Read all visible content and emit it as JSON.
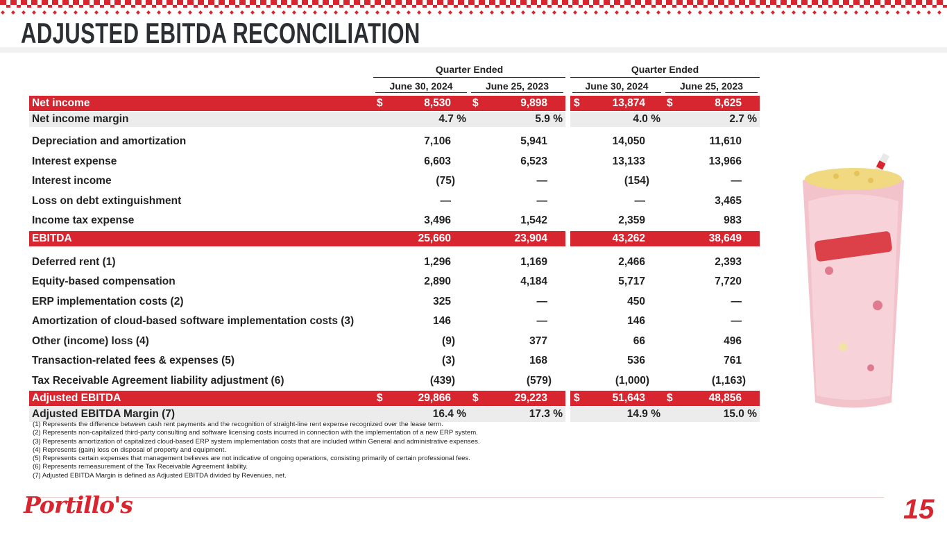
{
  "header": {
    "title": "ADJUSTED EBITDA RECONCILIATION"
  },
  "table": {
    "group_headers": [
      "Quarter Ended",
      "Quarter Ended"
    ],
    "columns": [
      "June 30, 2024",
      "June 25, 2023",
      "June 30, 2024",
      "June 25, 2023"
    ],
    "rows": [
      {
        "label": "Net income",
        "fill": "#d7262f",
        "cells": [
          {
            "symbol": "$",
            "value": "8,530"
          },
          {
            "symbol": "$",
            "value": "9,898"
          },
          {
            "symbol": "$",
            "value": "13,874"
          },
          {
            "symbol": "$",
            "value": "8,625"
          }
        ]
      },
      {
        "label": "Net income margin",
        "fill": "#ececec",
        "cells": [
          "4.7 %",
          "5.9 %",
          "4.0 %",
          "2.7 %"
        ]
      },
      {
        "label": "Depreciation and amortization",
        "cells": [
          "7,106",
          "5,941",
          "14,050",
          "11,610"
        ]
      },
      {
        "label": "Interest expense",
        "cells": [
          "6,603",
          "6,523",
          "13,133",
          "13,966"
        ]
      },
      {
        "label": "Interest income",
        "cells": [
          "(75)",
          "—",
          "(154)",
          "—"
        ]
      },
      {
        "label": "Loss on debt extinguishment",
        "cells": [
          "—",
          "—",
          "—",
          "3,465"
        ]
      },
      {
        "label": "Income tax expense",
        "cells": [
          "3,496",
          "1,542",
          "2,359",
          "983"
        ]
      },
      {
        "label": "EBITDA",
        "fill": "#d7262f",
        "cells": [
          "25,660",
          "23,904",
          "43,262",
          "38,649"
        ]
      },
      {
        "label": "Deferred rent (1)",
        "cells": [
          "1,296",
          "1,169",
          "2,466",
          "2,393"
        ]
      },
      {
        "label": "Equity-based compensation",
        "cells": [
          "2,890",
          "4,184",
          "5,717",
          "7,720"
        ]
      },
      {
        "label": "ERP implementation costs (2)",
        "cells": [
          "325",
          "—",
          "450",
          "—"
        ]
      },
      {
        "label": "Amortization of cloud-based software implementation costs (3)",
        "cells": [
          "146",
          "—",
          "146",
          "—"
        ]
      },
      {
        "label": "Other (income) loss (4)",
        "cells": [
          "(9)",
          "377",
          "66",
          "496"
        ]
      },
      {
        "label": "Transaction-related fees & expenses (5)",
        "cells": [
          "(3)",
          "168",
          "536",
          "761"
        ]
      },
      {
        "label": "Tax Receivable Agreement liability adjustment (6)",
        "cells": [
          "(439)",
          "(579)",
          "(1,000)",
          "(1,163)"
        ]
      },
      {
        "label": "Adjusted EBITDA",
        "fill": "#d7262f",
        "cells": [
          {
            "symbol": "$",
            "value": "29,866"
          },
          {
            "symbol": "$",
            "value": "29,223"
          },
          {
            "symbol": "$",
            "value": "51,643"
          },
          {
            "symbol": "$",
            "value": "48,856"
          }
        ]
      },
      {
        "label": "Adjusted EBITDA Margin (7)",
        "fill": "#ececec",
        "cells": [
          "16.4 %",
          "17.3 %",
          "14.9 %",
          "15.0 %"
        ]
      }
    ]
  },
  "footnotes": [
    "(1) Represents the difference between cash rent payments and the recognition of straight-line rent expense recognized over the lease term.",
    "(2) Represents non-capitalized third-party consulting and software licensing costs incurred in connection with the implementation of a new ERP system.",
    "(3) Represents amortization of capitalized cloud-based ERP system implementation costs that are included within General and administrative expenses.",
    "(4) Represents (gain) loss on disposal of property and equipment.",
    "(5) Represents certain expenses that management believes are not indicative of ongoing operations, consisting primarily of certain professional fees.",
    "(6) Represents remeasurement of the Tax Receivable Agreement liability.",
    "(7) Adjusted EBITDA Margin is defined as Adjusted EBITDA divided by Revenues, net."
  ],
  "footer": {
    "logo": "Portillo's",
    "page_number": "15"
  }
}
